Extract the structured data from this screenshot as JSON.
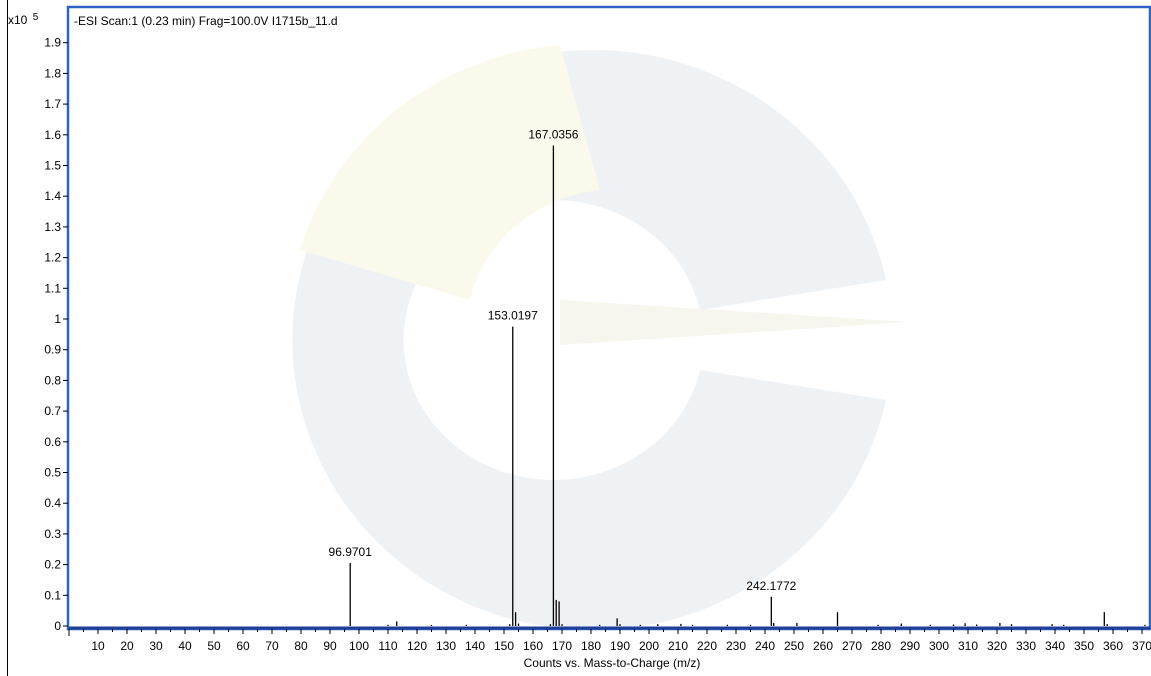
{
  "chart_data": {
    "type": "bar",
    "title": "-ESI Scan:1 (0.23 min) Frag=100.0V I1715b_11.d",
    "y_multiplier": "x10",
    "y_exponent": "5",
    "xlabel": "Counts vs. Mass-to-Charge (m/z)",
    "ylabel": "",
    "xlim": [
      0,
      375
    ],
    "ylim": [
      0,
      1.98
    ],
    "grid": false,
    "x_ticks": [
      10,
      20,
      30,
      40,
      50,
      60,
      70,
      80,
      90,
      100,
      110,
      120,
      130,
      140,
      150,
      160,
      170,
      180,
      190,
      200,
      210,
      220,
      230,
      240,
      250,
      260,
      270,
      280,
      290,
      300,
      310,
      320,
      330,
      340,
      350,
      360,
      370
    ],
    "y_ticks": [
      "0",
      "0.1",
      "0.2",
      "0.3",
      "0.4",
      "0.5",
      "0.6",
      "0.7",
      "0.8",
      "0.9",
      "1",
      "1.1",
      "1.2",
      "1.3",
      "1.4",
      "1.5",
      "1.6",
      "1.7",
      "1.8",
      "1.9"
    ],
    "peaks": [
      {
        "mz": 96.9701,
        "intensity": 0.205,
        "label": "96.9701"
      },
      {
        "mz": 110.0,
        "intensity": 0.004
      },
      {
        "mz": 113.0,
        "intensity": 0.015
      },
      {
        "mz": 125.0,
        "intensity": 0.003
      },
      {
        "mz": 137.0,
        "intensity": 0.004
      },
      {
        "mz": 152.0,
        "intensity": 0.006
      },
      {
        "mz": 153.0197,
        "intensity": 0.975,
        "label": "153.0197"
      },
      {
        "mz": 154.0,
        "intensity": 0.045
      },
      {
        "mz": 155.0,
        "intensity": 0.008
      },
      {
        "mz": 166.0,
        "intensity": 0.006
      },
      {
        "mz": 167.0356,
        "intensity": 1.565,
        "label": "167.0356"
      },
      {
        "mz": 168.0,
        "intensity": 0.085
      },
      {
        "mz": 169.0,
        "intensity": 0.08
      },
      {
        "mz": 170.0,
        "intensity": 0.006
      },
      {
        "mz": 183.0,
        "intensity": 0.004
      },
      {
        "mz": 189.0,
        "intensity": 0.025
      },
      {
        "mz": 190.0,
        "intensity": 0.006
      },
      {
        "mz": 197.0,
        "intensity": 0.004
      },
      {
        "mz": 203.0,
        "intensity": 0.006
      },
      {
        "mz": 211.0,
        "intensity": 0.007
      },
      {
        "mz": 215.0,
        "intensity": 0.004
      },
      {
        "mz": 227.0,
        "intensity": 0.004
      },
      {
        "mz": 235.0,
        "intensity": 0.004
      },
      {
        "mz": 242.1772,
        "intensity": 0.095,
        "label": "242.1772"
      },
      {
        "mz": 243.0,
        "intensity": 0.01
      },
      {
        "mz": 251.0,
        "intensity": 0.01
      },
      {
        "mz": 265.0,
        "intensity": 0.045
      },
      {
        "mz": 279.0,
        "intensity": 0.004
      },
      {
        "mz": 287.0,
        "intensity": 0.008
      },
      {
        "mz": 297.0,
        "intensity": 0.004
      },
      {
        "mz": 305.0,
        "intensity": 0.005
      },
      {
        "mz": 309.0,
        "intensity": 0.009
      },
      {
        "mz": 313.0,
        "intensity": 0.005
      },
      {
        "mz": 321.0,
        "intensity": 0.01
      },
      {
        "mz": 325.0,
        "intensity": 0.006
      },
      {
        "mz": 339.0,
        "intensity": 0.006
      },
      {
        "mz": 343.0,
        "intensity": 0.004
      },
      {
        "mz": 357.0,
        "intensity": 0.045
      },
      {
        "mz": 358.0,
        "intensity": 0.006
      },
      {
        "mz": 371.0,
        "intensity": 0.004
      }
    ]
  }
}
